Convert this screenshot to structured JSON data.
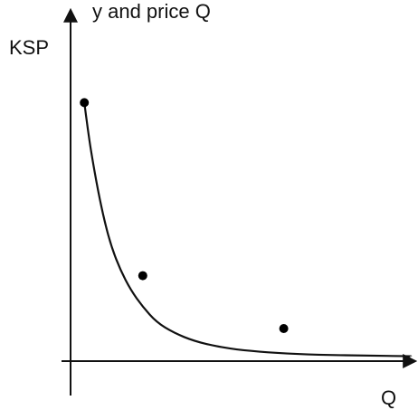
{
  "chart_data": {
    "type": "line",
    "title": "",
    "top_caption": "y and price Q",
    "xlabel": "Q",
    "ylabel": "KSP",
    "series": [
      {
        "curve": [
          {
            "x": 0.4,
            "y": 7.38
          },
          {
            "x": 0.5,
            "y": 6.63
          },
          {
            "x": 0.6,
            "y": 5.96
          },
          {
            "x": 0.8,
            "y": 4.85
          },
          {
            "x": 1.0,
            "y": 3.94
          },
          {
            "x": 1.2,
            "y": 3.23
          },
          {
            "x": 1.45,
            "y": 2.6
          },
          {
            "x": 1.75,
            "y": 2.03
          },
          {
            "x": 2.1,
            "y": 1.55
          },
          {
            "x": 2.5,
            "y": 1.11
          },
          {
            "x": 3.0,
            "y": 0.81
          },
          {
            "x": 3.6,
            "y": 0.57
          },
          {
            "x": 4.3,
            "y": 0.41
          },
          {
            "x": 5.0,
            "y": 0.31
          },
          {
            "x": 6.0,
            "y": 0.23
          },
          {
            "x": 7.2,
            "y": 0.18
          },
          {
            "x": 8.5,
            "y": 0.16
          },
          {
            "x": 9.9,
            "y": 0.14
          }
        ],
        "points": [
          {
            "x": 0.4,
            "y": 7.38
          },
          {
            "x": 2.1,
            "y": 2.44
          },
          {
            "x": 6.2,
            "y": 0.93
          }
        ],
        "line_color": "#111111",
        "point_color": "#000000"
      }
    ],
    "xlim": [
      0,
      10
    ],
    "ylim": [
      0,
      10
    ],
    "grid": false,
    "legend": "none"
  }
}
